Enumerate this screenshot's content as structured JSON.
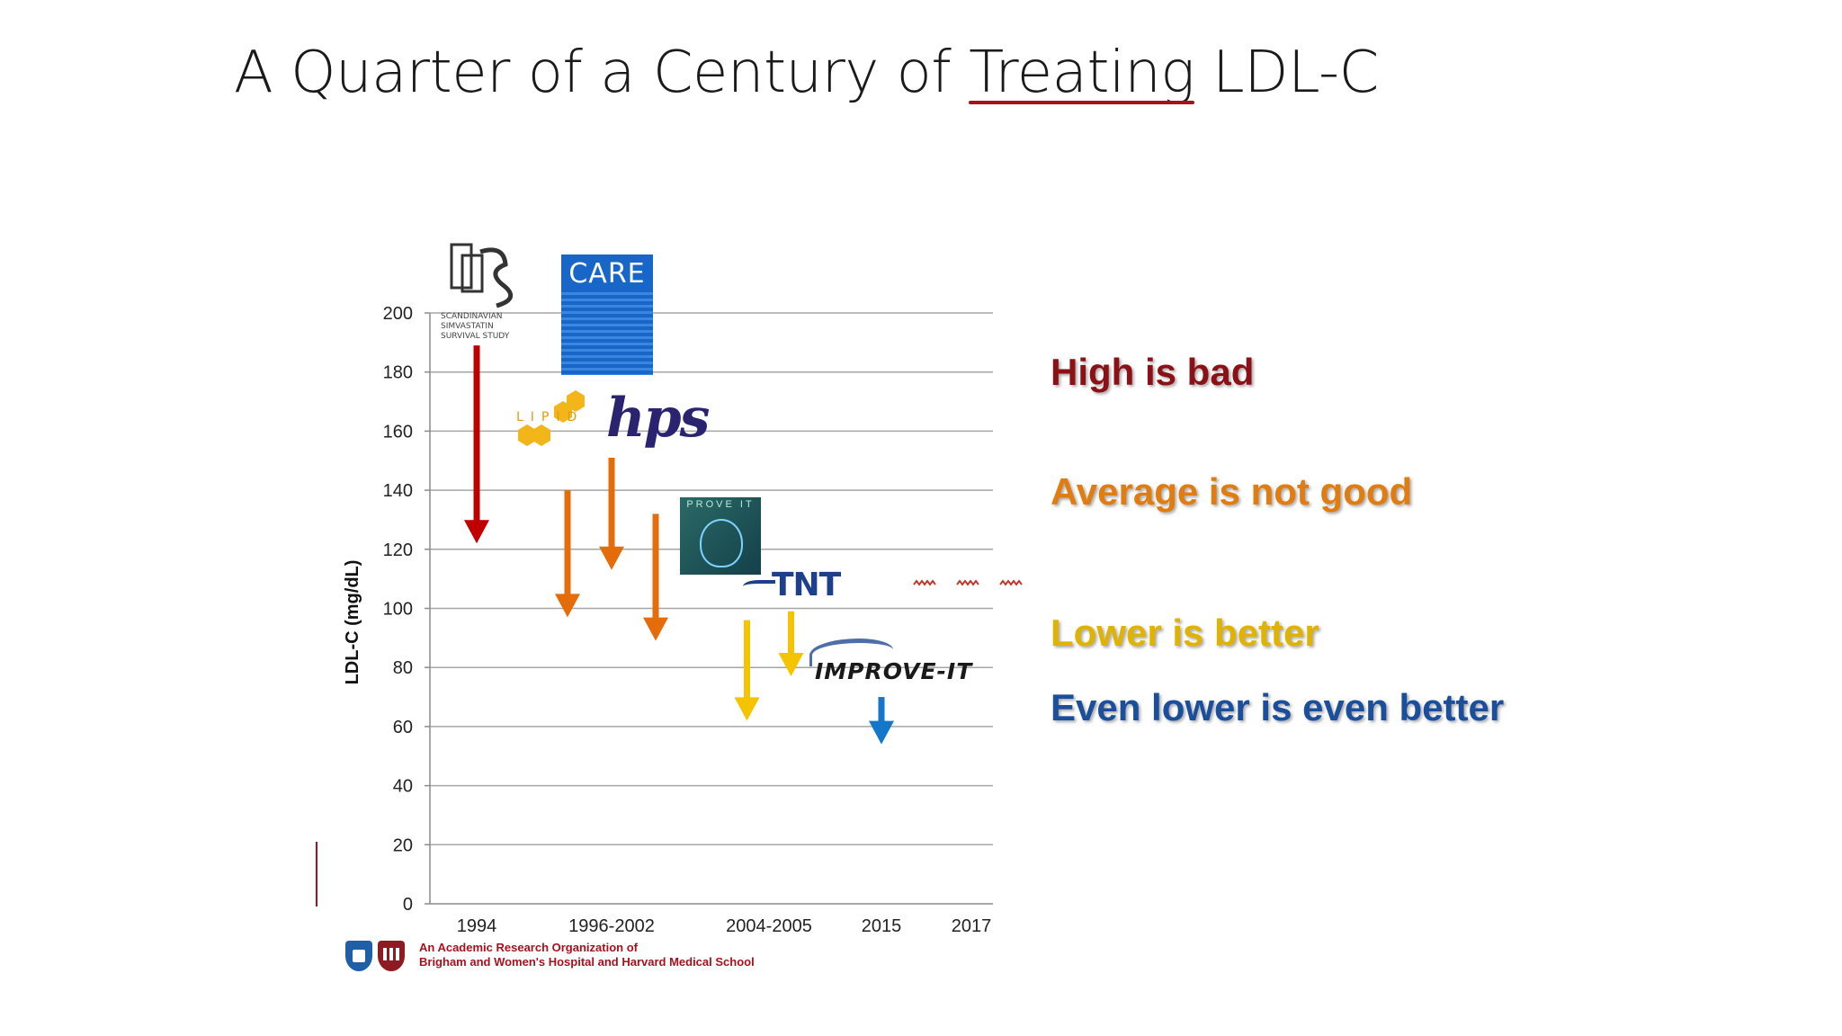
{
  "slide": {
    "title_prefix": "A Quarter of a Century of ",
    "title_underlined": "Treating",
    "title_suffix": " LDL-C"
  },
  "logos": {
    "scandinavian": [
      "SCANDINAVIAN",
      "SIMVASTATIN",
      "SURVIVAL STUDY"
    ],
    "care": "CARE",
    "lipid": "LIPID",
    "hps": "hps",
    "prove_it": "PROVE IT",
    "tnt": "TNT",
    "improve_it": "IMPROVE-IT"
  },
  "messages": {
    "high": "High is bad",
    "average": "Average is not good",
    "lower": "Lower is better",
    "even_lower": "Even lower is even better"
  },
  "footer": {
    "line1": "An Academic Research Organization of",
    "line2": "Brigham and Women's Hospital and Harvard Medical School"
  },
  "colors": {
    "red": "#c00000",
    "orange": "#e46c0a",
    "yellow": "#f5c400",
    "blue": "#1577c9",
    "accent": "#a8111c"
  },
  "chart_data": {
    "type": "bar",
    "xlabel": "",
    "ylabel": "LDL-C (mg/dL)",
    "ylim": [
      0,
      200
    ],
    "yticks": [
      0,
      20,
      40,
      60,
      80,
      100,
      120,
      140,
      160,
      180,
      200
    ],
    "grid": true,
    "categories": [
      "1994",
      "1996-2002",
      "2004-2005",
      "2015",
      "2017"
    ],
    "series": [
      {
        "category": "1994",
        "slot": 0.0,
        "from": 189,
        "to": 122,
        "color": "red"
      },
      {
        "category": "1996-2002",
        "slot": -0.5,
        "from": 140,
        "to": 97,
        "color": "orange"
      },
      {
        "category": "1996-2002",
        "slot": 0.0,
        "from": 151,
        "to": 113,
        "color": "orange"
      },
      {
        "category": "1996-2002",
        "slot": 0.5,
        "from": 132,
        "to": 89,
        "color": "orange"
      },
      {
        "category": "2004-2005",
        "slot": -0.25,
        "from": 96,
        "to": 62,
        "color": "yellow"
      },
      {
        "category": "2004-2005",
        "slot": 0.25,
        "from": 99,
        "to": 77,
        "color": "yellow"
      },
      {
        "category": "2015",
        "slot": 0.0,
        "from": 70,
        "to": 54,
        "color": "blue"
      }
    ]
  }
}
